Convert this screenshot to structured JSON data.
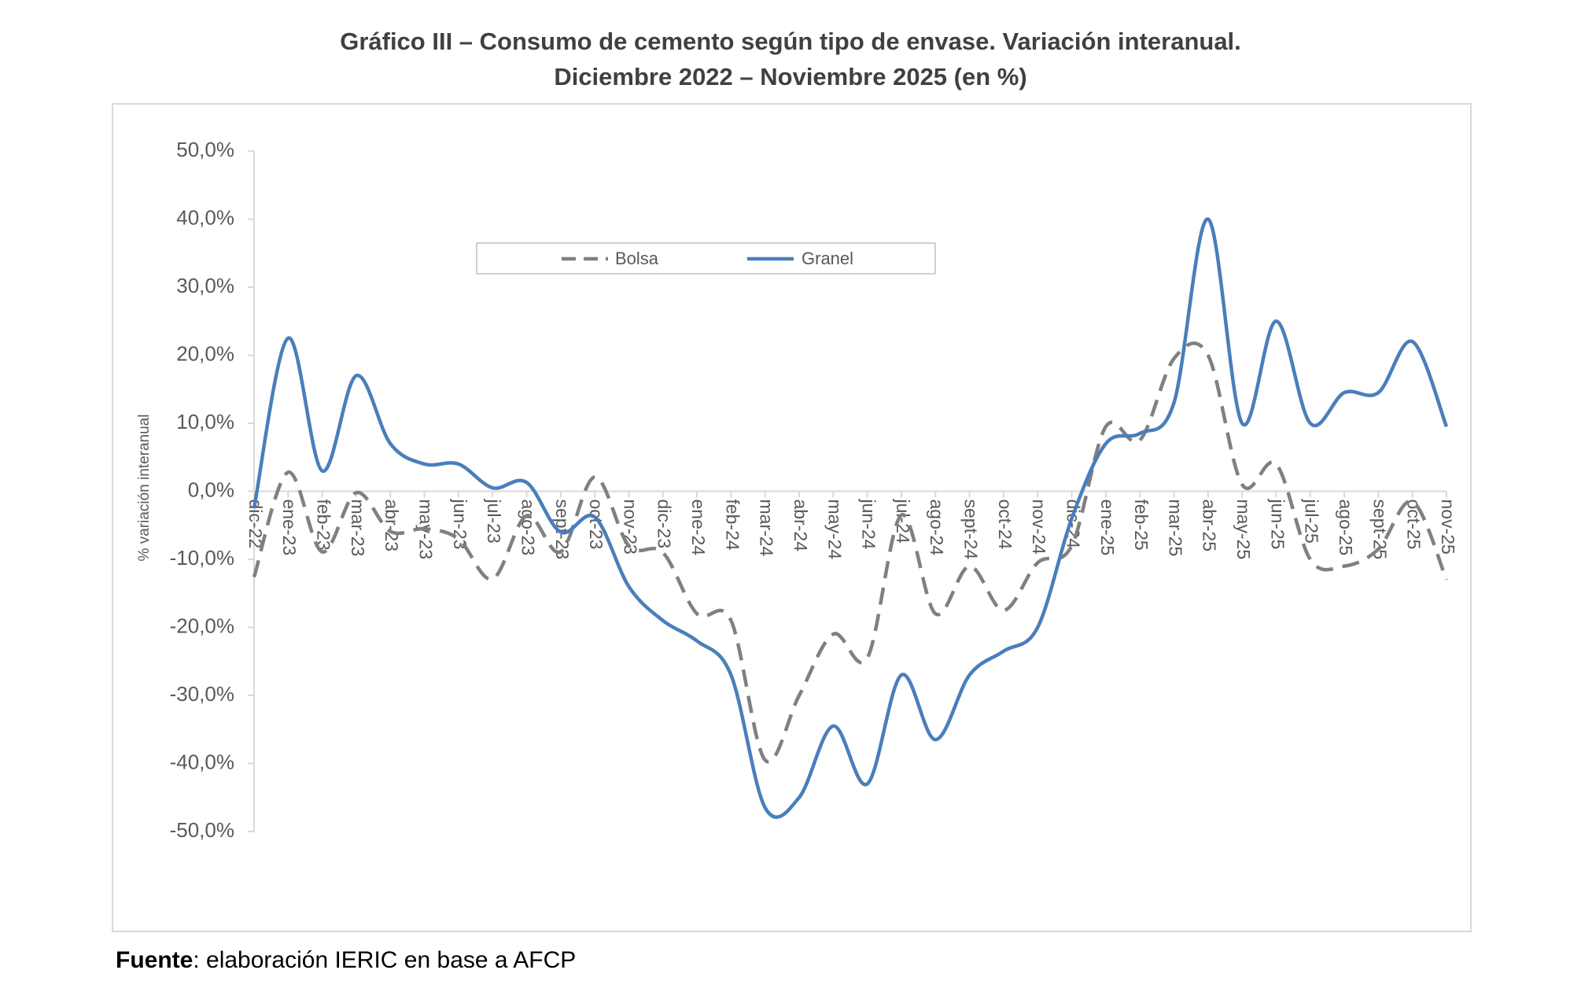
{
  "chart_data": {
    "type": "line",
    "title": "Gráfico III – Consumo de cemento según tipo de envase. Variación interanual.",
    "subtitle": "Diciembre 2022 – Noviembre 2025 (en %)",
    "y_label": "% variación interanual",
    "categories": [
      "dic-22",
      "ene-23",
      "feb-23",
      "mar-23",
      "abr-23",
      "may-23",
      "jun-23",
      "jul-23",
      "ago-23",
      "sept-23",
      "oct-23",
      "nov-23",
      "dic-23",
      "ene-24",
      "feb-24",
      "mar-24",
      "abr-24",
      "may-24",
      "jun-24",
      "jul-24",
      "ago-24",
      "sept-24",
      "oct-24",
      "nov-24",
      "dic-24",
      "ene-25",
      "feb-25",
      "mar-25",
      "abr-25",
      "may-25",
      "jun-25",
      "jul-25",
      "ago-25",
      "sept-25",
      "oct-25",
      "nov-25"
    ],
    "series": [
      {
        "name": "Bolsa",
        "color": "#808080",
        "dashed": true,
        "values": [
          -12.6,
          2.8,
          -8.9,
          -0.2,
          -5.9,
          -5.5,
          -7,
          -12.9,
          -3.6,
          -8.9,
          2.1,
          -8,
          -9,
          -18,
          -19,
          -39.5,
          -30,
          -21,
          -24.5,
          -3.5,
          -18,
          -11,
          -17.5,
          -10.5,
          -8,
          9.5,
          7.5,
          19.5,
          20,
          1,
          4,
          -10,
          -11,
          -8.5,
          -1.5,
          -13
        ]
      },
      {
        "name": "Granel",
        "color": "#4a7ebb",
        "dashed": false,
        "values": [
          -2.5,
          22.5,
          3,
          17,
          7,
          4,
          4,
          0.5,
          1.3,
          -6,
          -3.8,
          -14,
          -19,
          -22,
          -27,
          -46.5,
          -45,
          -34.5,
          -43,
          -27,
          -36.5,
          -27,
          -23.5,
          -20,
          -4,
          7,
          8.5,
          13,
          40,
          10,
          25,
          10,
          14.5,
          14.5,
          22,
          9.5
        ]
      }
    ],
    "ylim": [
      -50,
      50
    ],
    "yticks": [
      {
        "value": 50,
        "label": "50,0%"
      },
      {
        "value": 40,
        "label": "40,0%"
      },
      {
        "value": 30,
        "label": "30,0%"
      },
      {
        "value": 20,
        "label": "20,0%"
      },
      {
        "value": 10,
        "label": "10,0%"
      },
      {
        "value": 0,
        "label": "0,0%"
      },
      {
        "value": -10,
        "label": "-10,0%"
      },
      {
        "value": -20,
        "label": "-20,0%"
      },
      {
        "value": -30,
        "label": "-30,0%"
      },
      {
        "value": -40,
        "label": "-40,0%"
      },
      {
        "value": -50,
        "label": "-50,0%"
      }
    ],
    "grid": false,
    "legend": "top",
    "source": {
      "label": "Fuente",
      "text": ": elaboración IERIC en base a AFCP"
    }
  }
}
